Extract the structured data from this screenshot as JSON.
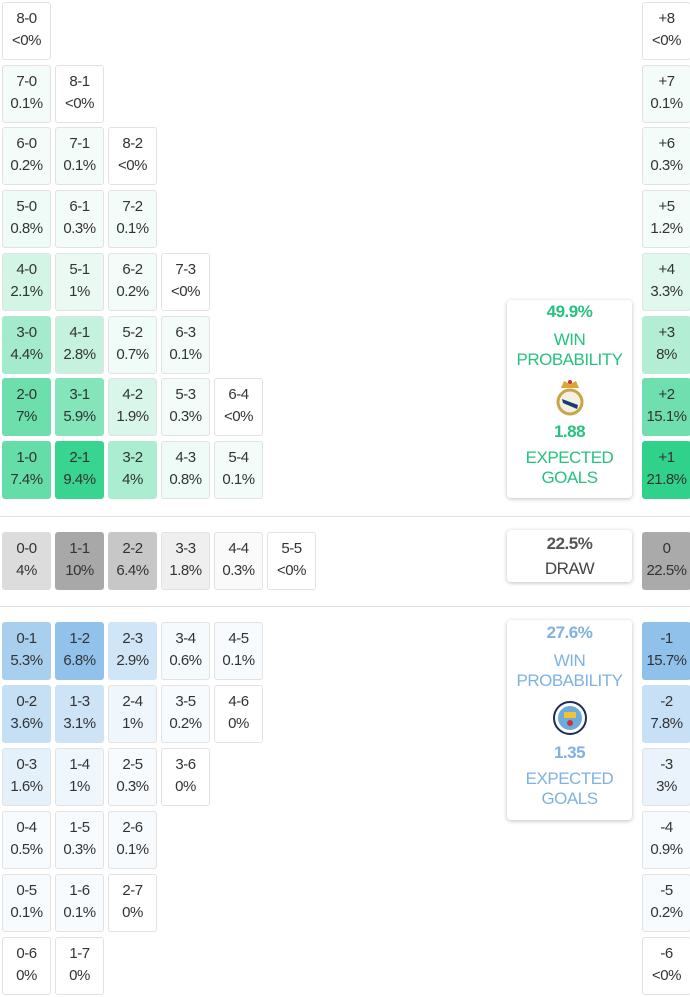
{
  "colors": {
    "home": "#2ed18a",
    "away": "#8ec0ea",
    "draw": "#a8a8a8",
    "home_text": "#27c27f",
    "away_text": "#7fb2e0",
    "draw_text": "#444444"
  },
  "home_rows": [
    [
      {
        "score": "8-0",
        "pct": "<0%"
      }
    ],
    [
      {
        "score": "7-0",
        "pct": "0.1%"
      },
      {
        "score": "8-1",
        "pct": "<0%"
      }
    ],
    [
      {
        "score": "6-0",
        "pct": "0.2%"
      },
      {
        "score": "7-1",
        "pct": "0.1%"
      },
      {
        "score": "8-2",
        "pct": "<0%"
      }
    ],
    [
      {
        "score": "5-0",
        "pct": "0.8%"
      },
      {
        "score": "6-1",
        "pct": "0.3%"
      },
      {
        "score": "7-2",
        "pct": "0.1%"
      }
    ],
    [
      {
        "score": "4-0",
        "pct": "2.1%"
      },
      {
        "score": "5-1",
        "pct": "1%"
      },
      {
        "score": "6-2",
        "pct": "0.2%"
      },
      {
        "score": "7-3",
        "pct": "<0%"
      }
    ],
    [
      {
        "score": "3-0",
        "pct": "4.4%"
      },
      {
        "score": "4-1",
        "pct": "2.8%"
      },
      {
        "score": "5-2",
        "pct": "0.7%"
      },
      {
        "score": "6-3",
        "pct": "0.1%"
      }
    ],
    [
      {
        "score": "2-0",
        "pct": "7%"
      },
      {
        "score": "3-1",
        "pct": "5.9%"
      },
      {
        "score": "4-2",
        "pct": "1.9%"
      },
      {
        "score": "5-3",
        "pct": "0.3%"
      },
      {
        "score": "6-4",
        "pct": "<0%"
      }
    ],
    [
      {
        "score": "1-0",
        "pct": "7.4%"
      },
      {
        "score": "2-1",
        "pct": "9.4%"
      },
      {
        "score": "3-2",
        "pct": "4%"
      },
      {
        "score": "4-3",
        "pct": "0.8%"
      },
      {
        "score": "5-4",
        "pct": "0.1%"
      }
    ]
  ],
  "home_margins": [
    {
      "score": "+8",
      "pct": "<0%"
    },
    {
      "score": "+7",
      "pct": "0.1%"
    },
    {
      "score": "+6",
      "pct": "0.3%"
    },
    {
      "score": "+5",
      "pct": "1.2%"
    },
    {
      "score": "+4",
      "pct": "3.3%"
    },
    {
      "score": "+3",
      "pct": "8%"
    },
    {
      "score": "+2",
      "pct": "15.1%"
    },
    {
      "score": "+1",
      "pct": "21.8%"
    }
  ],
  "draw_row": [
    {
      "score": "0-0",
      "pct": "4%"
    },
    {
      "score": "1-1",
      "pct": "10%"
    },
    {
      "score": "2-2",
      "pct": "6.4%"
    },
    {
      "score": "3-3",
      "pct": "1.8%"
    },
    {
      "score": "4-4",
      "pct": "0.3%"
    },
    {
      "score": "5-5",
      "pct": "<0%"
    }
  ],
  "draw_margin": {
    "score": "0",
    "pct": "22.5%"
  },
  "away_rows": [
    [
      {
        "score": "0-1",
        "pct": "5.3%"
      },
      {
        "score": "1-2",
        "pct": "6.8%"
      },
      {
        "score": "2-3",
        "pct": "2.9%"
      },
      {
        "score": "3-4",
        "pct": "0.6%"
      },
      {
        "score": "4-5",
        "pct": "0.1%"
      }
    ],
    [
      {
        "score": "0-2",
        "pct": "3.6%"
      },
      {
        "score": "1-3",
        "pct": "3.1%"
      },
      {
        "score": "2-4",
        "pct": "1%"
      },
      {
        "score": "3-5",
        "pct": "0.2%"
      },
      {
        "score": "4-6",
        "pct": "0%"
      }
    ],
    [
      {
        "score": "0-3",
        "pct": "1.6%"
      },
      {
        "score": "1-4",
        "pct": "1%"
      },
      {
        "score": "2-5",
        "pct": "0.3%"
      },
      {
        "score": "3-6",
        "pct": "0%"
      }
    ],
    [
      {
        "score": "0-4",
        "pct": "0.5%"
      },
      {
        "score": "1-5",
        "pct": "0.3%"
      },
      {
        "score": "2-6",
        "pct": "0.1%"
      }
    ],
    [
      {
        "score": "0-5",
        "pct": "0.1%"
      },
      {
        "score": "1-6",
        "pct": "0.1%"
      },
      {
        "score": "2-7",
        "pct": "0%"
      }
    ],
    [
      {
        "score": "0-6",
        "pct": "0%"
      },
      {
        "score": "1-7",
        "pct": "0%"
      }
    ]
  ],
  "away_margins": [
    {
      "score": "-1",
      "pct": "15.7%"
    },
    {
      "score": "-2",
      "pct": "7.8%"
    },
    {
      "score": "-3",
      "pct": "3%"
    },
    {
      "score": "-4",
      "pct": "0.9%"
    },
    {
      "score": "-5",
      "pct": "0.2%"
    },
    {
      "score": "-6",
      "pct": "<0%"
    }
  ],
  "home_card": {
    "win_pct": "49.9%",
    "win_label_1": "WIN",
    "win_label_2": "PROBABILITY",
    "crest": "real-madrid-crest",
    "xg": "1.88",
    "xg_label_1": "EXPECTED",
    "xg_label_2": "GOALS"
  },
  "draw_card": {
    "pct": "22.5%",
    "label": "DRAW"
  },
  "away_card": {
    "win_pct": "27.6%",
    "win_label_1": "WIN",
    "win_label_2": "PROBABILITY",
    "crest": "manchester-city-crest",
    "xg": "1.35",
    "xg_label_1": "EXPECTED",
    "xg_label_2": "GOALS"
  }
}
